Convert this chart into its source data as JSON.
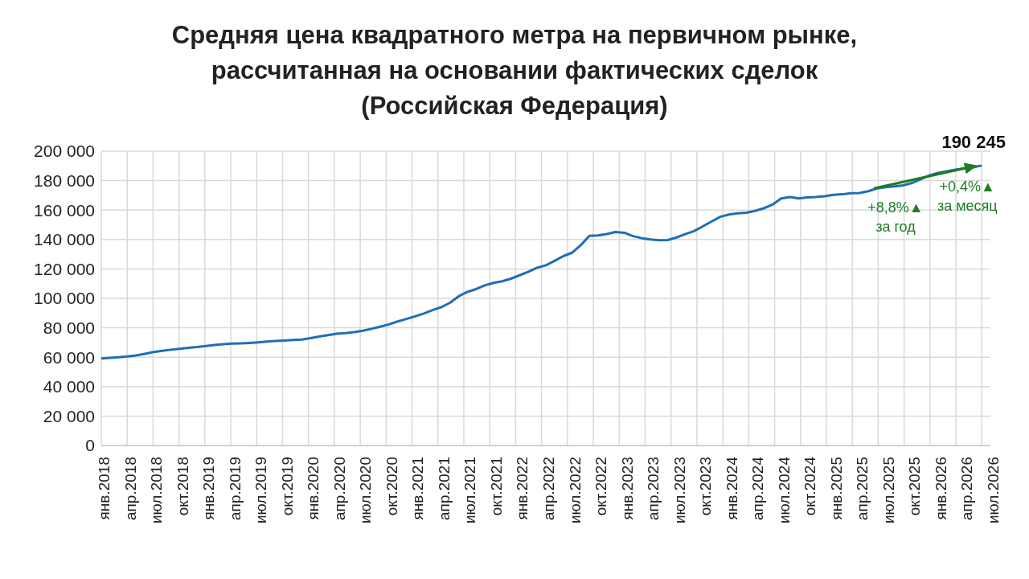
{
  "chart_data": {
    "type": "line",
    "title": "Средняя цена квадратного метра на первичном рынке,\nрассчитанная на основании фактических сделок\n(Российская Федерация)",
    "categories": [
      "янв.2018",
      null,
      null,
      "апр.2018",
      null,
      null,
      "июл.2018",
      null,
      null,
      "окт.2018",
      null,
      null,
      "янв.2019",
      null,
      null,
      "апр.2019",
      null,
      null,
      "июл.2019",
      null,
      null,
      "окт.2019",
      null,
      null,
      "янв.2020",
      null,
      null,
      "апр.2020",
      null,
      null,
      "июл.2020",
      null,
      null,
      "окт.2020",
      null,
      null,
      "янв.2021",
      null,
      null,
      "апр.2021",
      null,
      null,
      "июл.2021",
      null,
      null,
      "окт.2021",
      null,
      null,
      "янв.2022",
      null,
      null,
      "апр.2022",
      null,
      null,
      "июл.2022",
      null,
      null,
      "окт.2022",
      null,
      null,
      "янв.2023",
      null,
      null,
      "апр.2023",
      null,
      null,
      "июл.2023",
      null,
      null,
      "окт.2023",
      null,
      null,
      "янв.2024",
      null,
      null,
      "апр.2024",
      null,
      null,
      "июл.2024",
      null,
      null,
      "окт.2024",
      null,
      null,
      "янв.2025",
      null,
      null,
      "апр.2025",
      null,
      null,
      "июл.2025",
      null,
      null,
      "окт.2025",
      null,
      null,
      "янв.2026",
      null,
      null,
      "апр.2026",
      null,
      null,
      "июл.2026"
    ],
    "series": [
      {
        "color": "#1f6fb4",
        "values": [
          59100,
          59500,
          60000,
          60500,
          61200,
          62300,
          63500,
          64400,
          65100,
          65700,
          66400,
          66900,
          67600,
          68300,
          68800,
          69200,
          69400,
          69700,
          70100,
          70600,
          71000,
          71300,
          71700,
          72000,
          72900,
          74000,
          75000,
          75900,
          76400,
          77100,
          78000,
          79300,
          80700,
          82300,
          84300,
          86000,
          87800,
          89700,
          92000,
          94000,
          97000,
          101400,
          104400,
          106300,
          108800,
          110500,
          111600,
          113400,
          115700,
          118100,
          120800,
          122500,
          125500,
          128700,
          131000,
          136100,
          142500,
          142800,
          143700,
          145100,
          144600,
          142300,
          140900,
          140000,
          139500,
          139600,
          141400,
          143600,
          145700,
          148900,
          152200,
          155400,
          157000,
          157800,
          158200,
          159400,
          161200,
          163700,
          167900,
          168900,
          167900,
          168600,
          168900,
          169400,
          170300,
          170700,
          171400,
          171600,
          172800,
          174700,
          175600,
          176100,
          176800,
          178400,
          180900,
          183500,
          185300,
          186300,
          187400,
          188300,
          189100,
          190245,
          null
        ],
        "value_labels": [
          null,
          null,
          null,
          null,
          null,
          null,
          null,
          null,
          null,
          null,
          null,
          null,
          null,
          null,
          null,
          null,
          null,
          null,
          null,
          null,
          null,
          null,
          null,
          null,
          null,
          null,
          null,
          null,
          null,
          null,
          null,
          null,
          null,
          null,
          null,
          null,
          null,
          null,
          null,
          null,
          null,
          null,
          null,
          null,
          null,
          null,
          null,
          null,
          null,
          null,
          null,
          null,
          null,
          null,
          null,
          null,
          null,
          null,
          null,
          null,
          null,
          null,
          null,
          null,
          null,
          null,
          null,
          null,
          null,
          null,
          null,
          null,
          null,
          null,
          null,
          null,
          null,
          null,
          null,
          null,
          null,
          null,
          null,
          null,
          null,
          null,
          null,
          null,
          null,
          null,
          null,
          null,
          null,
          null,
          null,
          null,
          null,
          null,
          null,
          null,
          null,
          "190 245",
          null
        ]
      }
    ],
    "ylim": [
      0,
      200000
    ],
    "yticks": [
      {
        "value": 0,
        "label": "0"
      },
      {
        "value": 20000,
        "label": "20 000"
      },
      {
        "value": 40000,
        "label": "40 000"
      },
      {
        "value": 60000,
        "label": "60 000"
      },
      {
        "value": 80000,
        "label": "80 000"
      },
      {
        "value": 100000,
        "label": "100 000"
      },
      {
        "value": 120000,
        "label": "120 000"
      },
      {
        "value": 140000,
        "label": "140 000"
      },
      {
        "value": 160000,
        "label": "160 000"
      },
      {
        "value": 180000,
        "label": "180 000"
      },
      {
        "value": 200000,
        "label": "200 000"
      }
    ],
    "grid": true,
    "marker": "none",
    "line_style": "solid",
    "annotations": [
      {
        "text": "+8,8%▲\nза год",
        "y": 174700
      },
      {
        "text": "+0,4%▲\nза месяц",
        "y": 190245
      }
    ]
  }
}
